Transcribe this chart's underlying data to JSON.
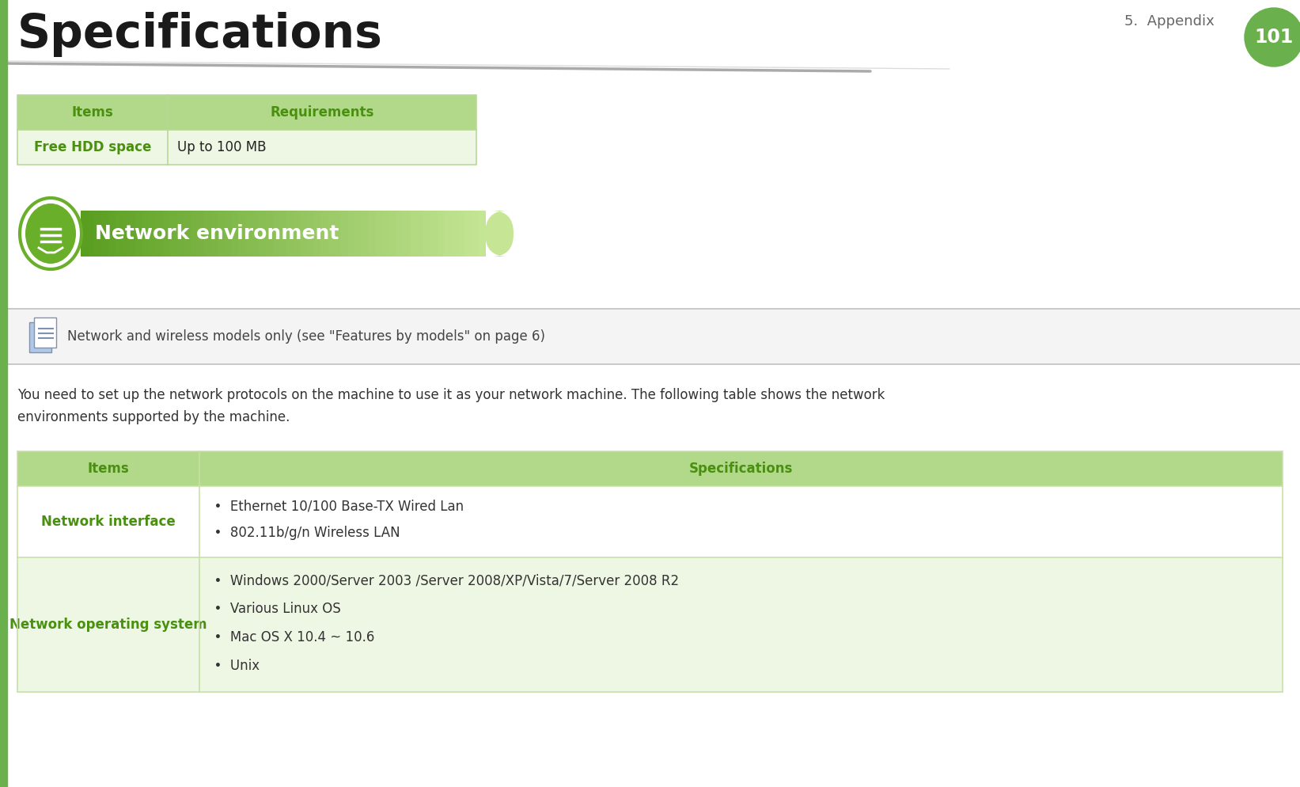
{
  "bg_color": "#ffffff",
  "title": "Specifications",
  "title_color": "#1a1a1a",
  "title_fontsize": 42,
  "left_bar_color": "#6ab04c",
  "header_right_text": "5.  Appendix",
  "header_right_color": "#666666",
  "page_num": "101",
  "page_num_bg": "#6ab04c",
  "page_num_color": "#ffffff",
  "divider_color_dark": "#999999",
  "divider_color_light": "#dddddd",
  "table1_header": [
    "Items",
    "Requirements"
  ],
  "table1_header_bg": "#b2d98a",
  "table1_header_text_color": "#4a9010",
  "table1_rows": [
    [
      "Free HDD space",
      "Up to 100 MB"
    ]
  ],
  "table1_row_alt_bg": "#eef7e4",
  "table1_item_color": "#4a9010",
  "table1_value_color": "#222222",
  "section_banner_bg_left": "#6aaf2a",
  "section_banner_bg_right": "#b8dd88",
  "section_banner_text": "Network environment",
  "section_banner_text_color": "#ffffff",
  "section_icon_border": "#6aaf2a",
  "section_icon_bg": "#6aaf2a",
  "note_bg": "#f2f2f2",
  "note_border_top": "#bbbbbb",
  "note_border_bottom": "#bbbbbb",
  "note_text": "Network and wireless models only (see \"Features by models\" on page 6)",
  "note_text_color": "#444444",
  "body_text_line1": "You need to set up the network protocols on the machine to use it as your network machine. The following table shows the network",
  "body_text_line2": "environments supported by the machine.",
  "body_text_color": "#333333",
  "table2_header": [
    "Items",
    "Specifications"
  ],
  "table2_header_bg": "#b2d98a",
  "table2_header_text_color": "#4a9010",
  "table2_rows": [
    [
      "Network interface",
      [
        "  •  Ethernet 10/100 Base-TX Wired Lan",
        "  •  802.11b/g/n Wireless LAN"
      ]
    ],
    [
      "Network operating system",
      [
        "  •  Windows 2000/Server 2003 /Server 2008/XP/Vista/7/Server 2008 R2",
        "  •  Various Linux OS",
        "  •  Mac OS X 10.4 ~ 10.6",
        "  •  Unix"
      ]
    ]
  ],
  "table2_item_color": "#4a9010",
  "table2_value_color": "#333333",
  "table2_row_bg": "#ffffff",
  "table2_row_alt_bg": "#eef7e4",
  "table2_border_color": "#c8e0a8"
}
